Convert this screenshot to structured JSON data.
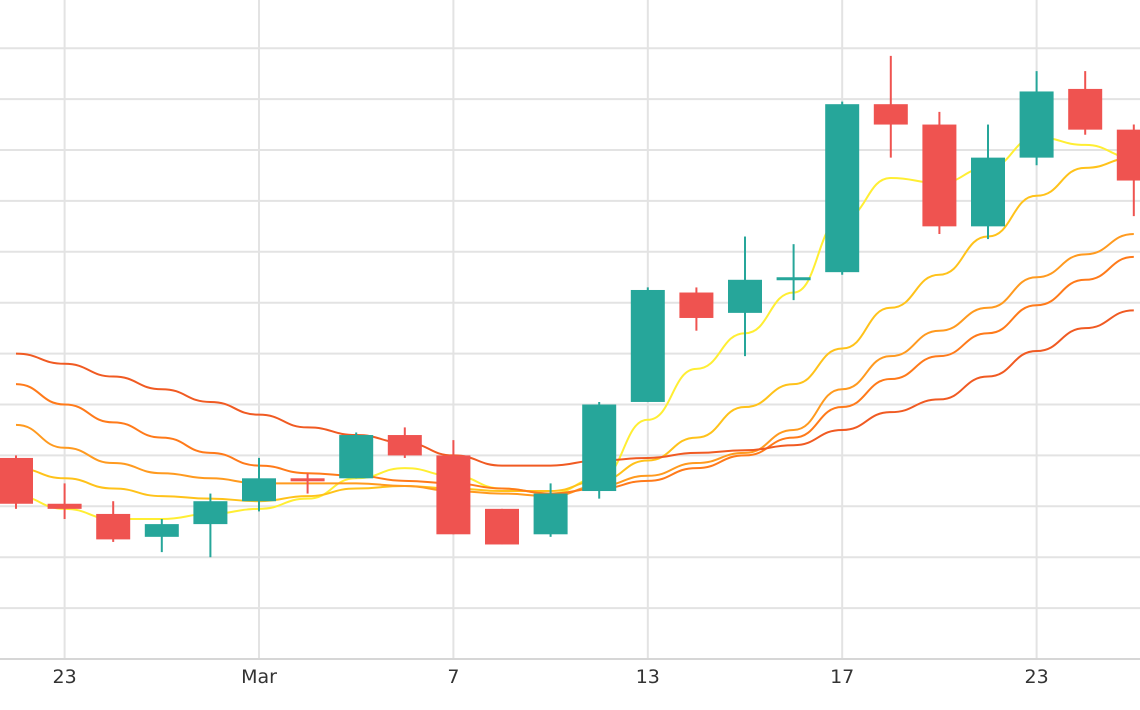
{
  "chart_data": {
    "type": "candlestick",
    "title": "",
    "xlabel": "",
    "ylabel": "",
    "x_tick_labels": [
      {
        "label": "23",
        "index": 1
      },
      {
        "label": "Mar",
        "index": 5
      },
      {
        "label": "7",
        "index": 9
      },
      {
        "label": "13",
        "index": 13
      },
      {
        "label": "17",
        "index": 17
      },
      {
        "label": "23",
        "index": 21
      }
    ],
    "ylim": [
      0,
      13
    ],
    "y_gridlines": [
      1,
      2,
      3,
      4,
      5,
      6,
      7,
      8,
      9,
      10,
      11,
      12,
      13
    ],
    "grid": true,
    "colors": {
      "up": "#26a69a",
      "down": "#ef5350"
    },
    "candles": [
      {
        "index": 0,
        "open": 3.95,
        "high": 4.0,
        "low": 2.95,
        "close": 3.05
      },
      {
        "index": 1,
        "open": 3.05,
        "high": 3.45,
        "low": 2.75,
        "close": 2.95
      },
      {
        "index": 2,
        "open": 2.85,
        "high": 3.1,
        "low": 2.3,
        "close": 2.35
      },
      {
        "index": 3,
        "open": 2.4,
        "high": 2.75,
        "low": 2.1,
        "close": 2.65
      },
      {
        "index": 4,
        "open": 2.65,
        "high": 3.25,
        "low": 2.0,
        "close": 3.1
      },
      {
        "index": 5,
        "open": 3.1,
        "high": 3.95,
        "low": 2.9,
        "close": 3.55
      },
      {
        "index": 6,
        "open": 3.55,
        "high": 3.65,
        "low": 3.25,
        "close": 3.5
      },
      {
        "index": 7,
        "open": 3.55,
        "high": 4.45,
        "low": 3.55,
        "close": 4.4
      },
      {
        "index": 8,
        "open": 4.4,
        "high": 4.55,
        "low": 3.95,
        "close": 4.0
      },
      {
        "index": 9,
        "open": 4.0,
        "high": 4.3,
        "low": 2.45,
        "close": 2.45
      },
      {
        "index": 10,
        "open": 2.95,
        "high": 2.95,
        "low": 2.25,
        "close": 2.25
      },
      {
        "index": 11,
        "open": 2.45,
        "high": 3.45,
        "low": 2.4,
        "close": 3.25
      },
      {
        "index": 12,
        "open": 3.3,
        "high": 5.05,
        "low": 3.15,
        "close": 5.0
      },
      {
        "index": 13,
        "open": 5.05,
        "high": 7.3,
        "low": 5.05,
        "close": 7.25
      },
      {
        "index": 14,
        "open": 7.2,
        "high": 7.3,
        "low": 6.45,
        "close": 6.7
      },
      {
        "index": 15,
        "open": 6.8,
        "high": 8.3,
        "low": 5.95,
        "close": 7.45
      },
      {
        "index": 16,
        "open": 7.5,
        "high": 8.15,
        "low": 7.05,
        "close": 7.5
      },
      {
        "index": 17,
        "open": 7.6,
        "high": 10.95,
        "low": 7.55,
        "close": 10.9
      },
      {
        "index": 18,
        "open": 10.9,
        "high": 11.85,
        "low": 9.85,
        "close": 10.5
      },
      {
        "index": 19,
        "open": 10.5,
        "high": 10.75,
        "low": 8.35,
        "close": 8.5
      },
      {
        "index": 20,
        "open": 8.5,
        "high": 10.5,
        "low": 8.25,
        "close": 9.85
      },
      {
        "index": 21,
        "open": 9.85,
        "high": 11.55,
        "low": 9.7,
        "close": 11.15
      },
      {
        "index": 22,
        "open": 11.2,
        "high": 11.55,
        "low": 10.3,
        "close": 10.4
      },
      {
        "index": 23,
        "open": 10.4,
        "high": 10.5,
        "low": 8.7,
        "close": 9.4
      }
    ],
    "moving_averages": [
      {
        "color": "#ffee33",
        "values": [
          [
            0,
            3.2
          ],
          [
            1,
            2.95
          ],
          [
            2,
            2.75
          ],
          [
            3,
            2.75
          ],
          [
            4,
            2.85
          ],
          [
            5,
            2.95
          ],
          [
            6,
            3.15
          ],
          [
            7,
            3.55
          ],
          [
            8,
            3.75
          ],
          [
            9,
            3.6
          ],
          [
            10,
            3.35
          ],
          [
            11,
            3.25
          ],
          [
            12,
            3.55
          ],
          [
            13,
            4.7
          ],
          [
            14,
            5.7
          ],
          [
            15,
            6.4
          ],
          [
            16,
            7.2
          ],
          [
            17,
            8.65
          ],
          [
            18,
            9.45
          ],
          [
            19,
            9.35
          ],
          [
            20,
            9.65
          ],
          [
            21,
            10.25
          ],
          [
            22,
            10.1
          ],
          [
            23,
            9.85
          ]
        ]
      },
      {
        "color": "#ffc21a",
        "values": [
          [
            0,
            3.75
          ],
          [
            1,
            3.55
          ],
          [
            2,
            3.35
          ],
          [
            3,
            3.2
          ],
          [
            4,
            3.15
          ],
          [
            5,
            3.1
          ],
          [
            6,
            3.2
          ],
          [
            7,
            3.35
          ],
          [
            8,
            3.4
          ],
          [
            9,
            3.35
          ],
          [
            10,
            3.3
          ],
          [
            11,
            3.3
          ],
          [
            12,
            3.5
          ],
          [
            13,
            3.9
          ],
          [
            14,
            4.35
          ],
          [
            15,
            4.95
          ],
          [
            16,
            5.4
          ],
          [
            17,
            6.1
          ],
          [
            18,
            6.9
          ],
          [
            19,
            7.55
          ],
          [
            20,
            8.3
          ],
          [
            21,
            9.1
          ],
          [
            22,
            9.65
          ],
          [
            23,
            9.85
          ]
        ]
      },
      {
        "color": "#ff9a1f",
        "values": [
          [
            0,
            4.6
          ],
          [
            1,
            4.15
          ],
          [
            2,
            3.85
          ],
          [
            3,
            3.65
          ],
          [
            4,
            3.55
          ],
          [
            5,
            3.45
          ],
          [
            6,
            3.45
          ],
          [
            7,
            3.45
          ],
          [
            8,
            3.4
          ],
          [
            9,
            3.3
          ],
          [
            10,
            3.25
          ],
          [
            11,
            3.2
          ],
          [
            12,
            3.4
          ],
          [
            13,
            3.6
          ],
          [
            14,
            3.85
          ],
          [
            15,
            4.05
          ],
          [
            16,
            4.5
          ],
          [
            17,
            5.3
          ],
          [
            18,
            5.95
          ],
          [
            19,
            6.45
          ],
          [
            20,
            6.9
          ],
          [
            21,
            7.5
          ],
          [
            22,
            7.95
          ],
          [
            23,
            8.35
          ]
        ]
      },
      {
        "color": "#ff7a1a",
        "values": [
          [
            0,
            5.4
          ],
          [
            1,
            5.0
          ],
          [
            2,
            4.65
          ],
          [
            3,
            4.35
          ],
          [
            4,
            4.05
          ],
          [
            5,
            3.8
          ],
          [
            6,
            3.65
          ],
          [
            7,
            3.6
          ],
          [
            8,
            3.5
          ],
          [
            9,
            3.45
          ],
          [
            10,
            3.35
          ],
          [
            11,
            3.25
          ],
          [
            12,
            3.35
          ],
          [
            13,
            3.5
          ],
          [
            14,
            3.75
          ],
          [
            15,
            4.0
          ],
          [
            16,
            4.35
          ],
          [
            17,
            4.95
          ],
          [
            18,
            5.5
          ],
          [
            19,
            5.95
          ],
          [
            20,
            6.4
          ],
          [
            21,
            6.95
          ],
          [
            22,
            7.45
          ],
          [
            23,
            7.9
          ]
        ]
      },
      {
        "color": "#f05a22",
        "values": [
          [
            0,
            6.0
          ],
          [
            1,
            5.8
          ],
          [
            2,
            5.55
          ],
          [
            3,
            5.3
          ],
          [
            4,
            5.05
          ],
          [
            5,
            4.8
          ],
          [
            6,
            4.55
          ],
          [
            7,
            4.4
          ],
          [
            8,
            4.25
          ],
          [
            9,
            4.0
          ],
          [
            10,
            3.8
          ],
          [
            11,
            3.8
          ],
          [
            12,
            3.9
          ],
          [
            13,
            3.95
          ],
          [
            14,
            4.05
          ],
          [
            15,
            4.1
          ],
          [
            16,
            4.2
          ],
          [
            17,
            4.5
          ],
          [
            18,
            4.85
          ],
          [
            19,
            5.1
          ],
          [
            20,
            5.55
          ],
          [
            21,
            6.05
          ],
          [
            22,
            6.5
          ],
          [
            23,
            6.85
          ]
        ]
      }
    ]
  }
}
